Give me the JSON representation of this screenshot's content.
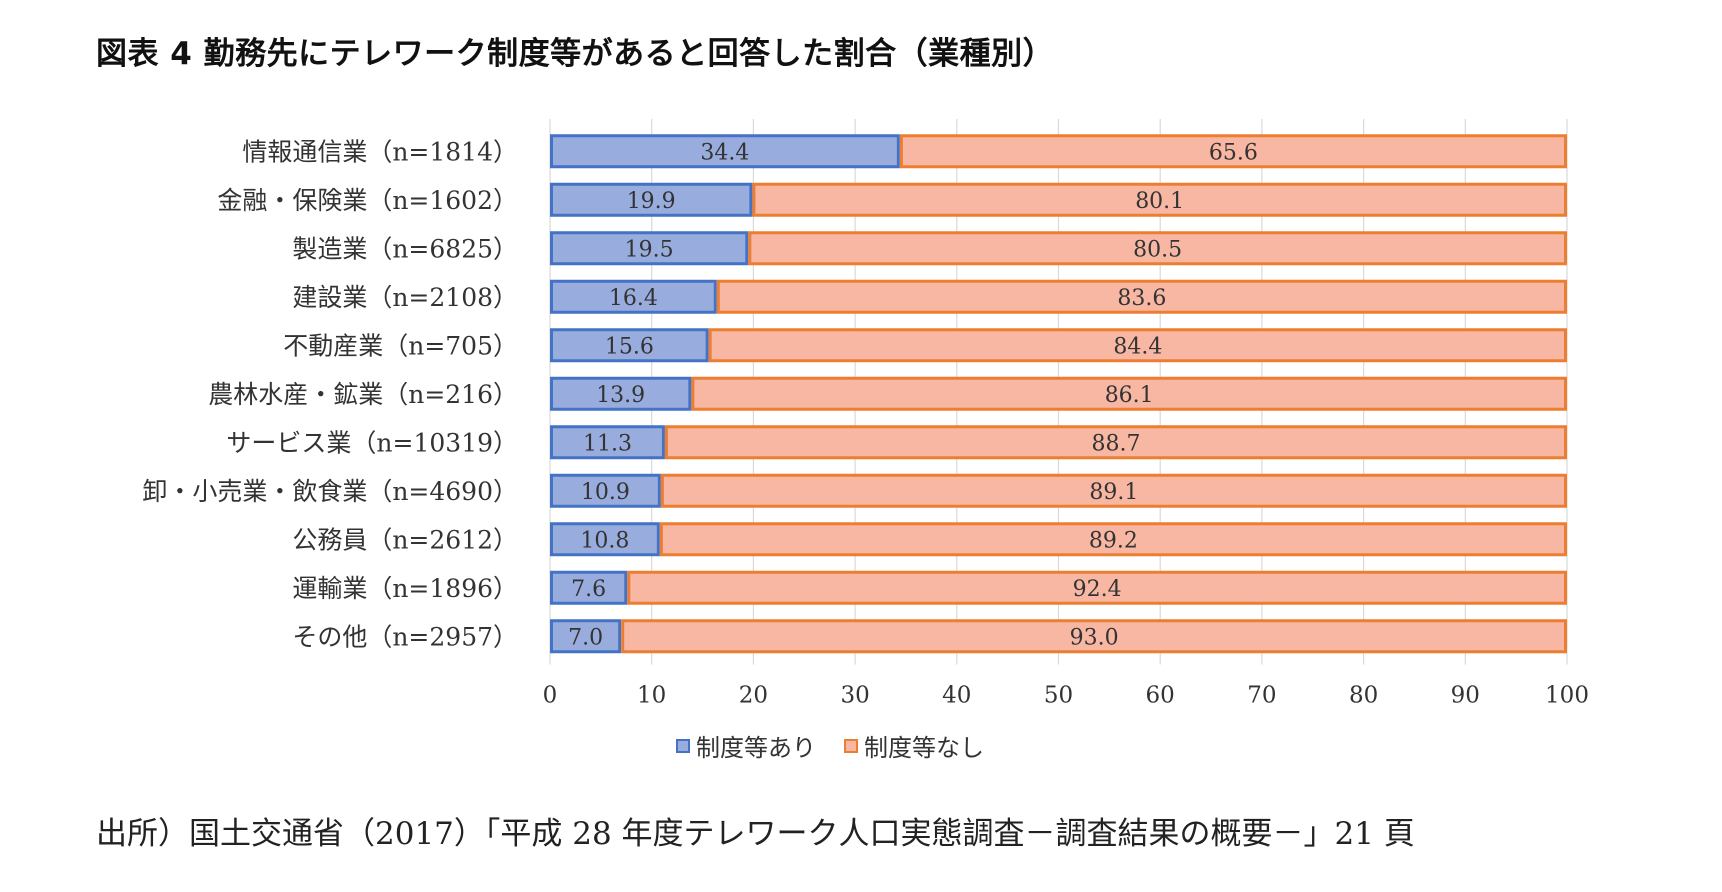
{
  "title": "図表 4  勤務先にテレワーク制度等があると回答した割合（業種別）",
  "source": "出所）国土交通省（2017）「平成 28 年度テレワーク人口実態調査－調査結果の概要－」21 頁",
  "colors": {
    "series1_fill": "#99ACDE",
    "series1_border": "#4472C4",
    "series2_fill": "#F8B7A3",
    "series2_border": "#ED7D31",
    "grid": "#D9D9D9"
  },
  "chart_data": {
    "type": "bar",
    "orientation": "horizontal",
    "stacked": true,
    "categories": [
      "情報通信業（n=1814）",
      "金融・保険業（n=1602）",
      "製造業（n=6825）",
      "建設業（n=2108）",
      "不動産業（n=705）",
      "農林水産・鉱業（n=216）",
      "サービス業（n=10319）",
      "卸・小売業・飲食業（n=4690）",
      "公務員（n=2612）",
      "運輸業（n=1896）",
      "その他（n=2957）"
    ],
    "series": [
      {
        "name": "制度等あり",
        "values": [
          34.4,
          19.9,
          19.5,
          16.4,
          15.6,
          13.9,
          11.3,
          10.9,
          10.8,
          7.6,
          7.0
        ],
        "labels": [
          "34.4",
          "19.9",
          "19.5",
          "16.4",
          "15.6",
          "13.9",
          "11.3",
          "10.9",
          "10.8",
          "7.6",
          "7.0"
        ]
      },
      {
        "name": "制度等なし",
        "values": [
          65.6,
          80.1,
          80.5,
          83.6,
          84.4,
          86.1,
          88.7,
          89.1,
          89.2,
          92.4,
          93.0
        ],
        "labels": [
          "65.6",
          "80.1",
          "80.5",
          "83.6",
          "84.4",
          "86.1",
          "88.7",
          "89.1",
          "89.2",
          "92.4",
          "93.0"
        ]
      }
    ],
    "xlim": [
      0,
      100
    ],
    "xticks": [
      "0",
      "10",
      "20",
      "30",
      "40",
      "50",
      "60",
      "70",
      "80",
      "90",
      "100"
    ],
    "grid": true,
    "legend_position": "bottom"
  }
}
